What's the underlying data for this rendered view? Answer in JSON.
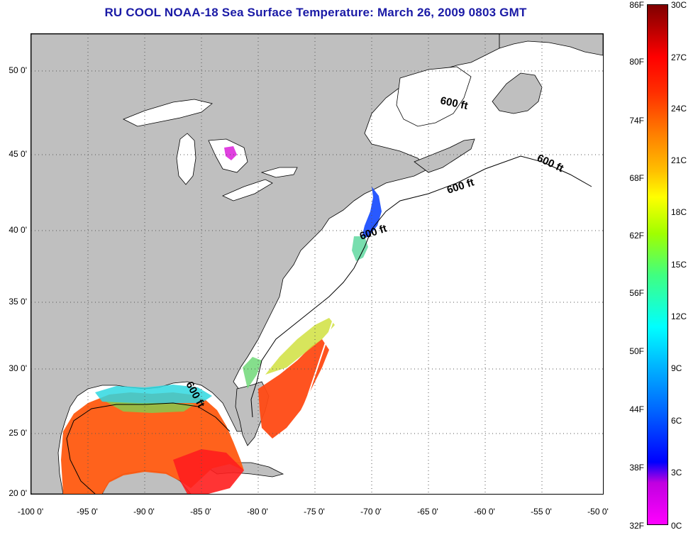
{
  "title": "RU COOL  NOAA-18  Sea Surface Temperature:  March 26, 2009 0803 GMT",
  "map": {
    "latitude_labels": [
      "50 0'",
      "45 0'",
      "40 0'",
      "35 0'",
      "30 0'",
      "25 0'",
      "20 0'"
    ],
    "longitude_labels": [
      "-100 0'",
      "-95 0'",
      "-90 0'",
      "-85 0'",
      "-80 0'",
      "-75 0'",
      "-70 0'",
      "-65 0'",
      "-60 0'",
      "-55 0'",
      "-50 0'"
    ],
    "contour_labels": [
      "600 ft",
      "600 ft",
      "600 ft",
      "600 ft",
      "600 ft"
    ],
    "colors": {
      "land": "#bfbfbf",
      "cloud": "#ffffff",
      "grid": "#555555"
    }
  },
  "colorbar": {
    "fahrenheit_labels": [
      "86F",
      "80F",
      "74F",
      "68F",
      "62F",
      "56F",
      "50F",
      "44F",
      "38F",
      "32F"
    ],
    "celsius_labels": [
      "30C",
      "27C",
      "24C",
      "21C",
      "18C",
      "15C",
      "12C",
      "9C",
      "6C",
      "3C",
      "0C"
    ]
  }
}
